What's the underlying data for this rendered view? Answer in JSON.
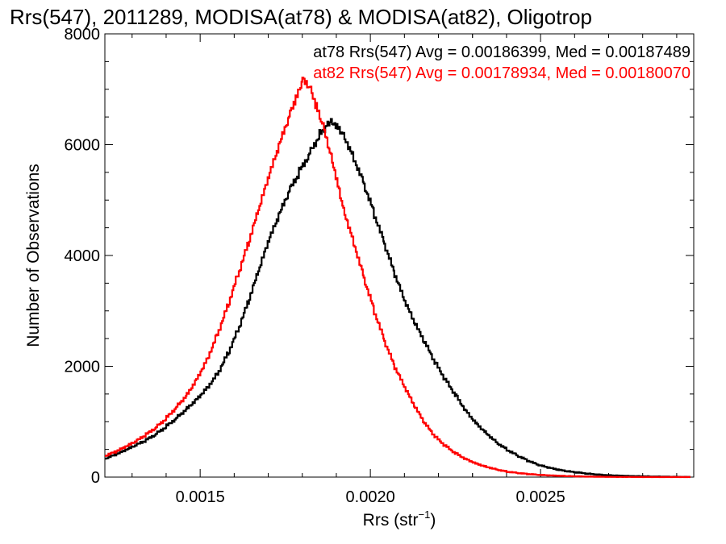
{
  "chart_data": {
    "type": "histogram-step",
    "title": "Rrs(547), 2011289, MODISA(at78) & MODISA(at82), Oligotrop",
    "xlabel": "Rrs (str",
    "xlabel_sup": "−1",
    "xlabel_close": ")",
    "ylabel": "Number of Observations",
    "xlim": [
      0.00122,
      0.00295
    ],
    "ylim": [
      0,
      8000
    ],
    "x_ticks": [
      0.0015,
      0.002,
      0.0025
    ],
    "x_tick_labels": [
      "0.0015",
      "0.0020",
      "0.0025"
    ],
    "y_ticks": [
      0,
      2000,
      4000,
      6000,
      8000
    ],
    "y_tick_labels": [
      "0",
      "2000",
      "4000",
      "6000",
      "8000"
    ],
    "grid": false,
    "legend_position": "top-right",
    "series": [
      {
        "name": "at78",
        "legend_text": "at78 Rrs(547) Avg = 0.00186399, Med = 0.00187489",
        "color": "#000000",
        "points": [
          [
            0.00122,
            330
          ],
          [
            0.00125,
            400
          ],
          [
            0.00128,
            480
          ],
          [
            0.00131,
            570
          ],
          [
            0.00134,
            660
          ],
          [
            0.00137,
            780
          ],
          [
            0.0014,
            920
          ],
          [
            0.00143,
            1080
          ],
          [
            0.00146,
            1250
          ],
          [
            0.00149,
            1430
          ],
          [
            0.00152,
            1630
          ],
          [
            0.00155,
            1880
          ],
          [
            0.00158,
            2230
          ],
          [
            0.00161,
            2650
          ],
          [
            0.00164,
            3150
          ],
          [
            0.00167,
            3700
          ],
          [
            0.0017,
            4250
          ],
          [
            0.00173,
            4700
          ],
          [
            0.00176,
            5150
          ],
          [
            0.00179,
            5500
          ],
          [
            0.00182,
            5850
          ],
          [
            0.00185,
            6200
          ],
          [
            0.00187,
            6350
          ],
          [
            0.00188,
            6450
          ],
          [
            0.0019,
            6380
          ],
          [
            0.00192,
            6200
          ],
          [
            0.00195,
            5780
          ],
          [
            0.00198,
            5300
          ],
          [
            0.00201,
            4750
          ],
          [
            0.00204,
            4200
          ],
          [
            0.00207,
            3650
          ],
          [
            0.0021,
            3150
          ],
          [
            0.00213,
            2750
          ],
          [
            0.00216,
            2400
          ],
          [
            0.00219,
            2050
          ],
          [
            0.00222,
            1750
          ],
          [
            0.00225,
            1480
          ],
          [
            0.00228,
            1200
          ],
          [
            0.00231,
            980
          ],
          [
            0.00234,
            800
          ],
          [
            0.00237,
            630
          ],
          [
            0.0024,
            500
          ],
          [
            0.00243,
            390
          ],
          [
            0.00246,
            300
          ],
          [
            0.00249,
            220
          ],
          [
            0.00252,
            170
          ],
          [
            0.00255,
            130
          ],
          [
            0.00258,
            100
          ],
          [
            0.00261,
            80
          ],
          [
            0.00264,
            60
          ],
          [
            0.00267,
            45
          ],
          [
            0.0027,
            35
          ],
          [
            0.00273,
            28
          ],
          [
            0.00276,
            22
          ],
          [
            0.00279,
            17
          ],
          [
            0.00282,
            12
          ],
          [
            0.00285,
            9
          ],
          [
            0.00288,
            6
          ],
          [
            0.00291,
            4
          ],
          [
            0.00294,
            3
          ]
        ]
      },
      {
        "name": "at82",
        "legend_text": "at82 Rrs(547) Avg = 0.00178934, Med = 0.00180070",
        "color": "#ff0000",
        "points": [
          [
            0.00122,
            380
          ],
          [
            0.00125,
            450
          ],
          [
            0.00128,
            540
          ],
          [
            0.00131,
            640
          ],
          [
            0.00134,
            760
          ],
          [
            0.00137,
            900
          ],
          [
            0.0014,
            1070
          ],
          [
            0.00143,
            1280
          ],
          [
            0.00146,
            1500
          ],
          [
            0.00149,
            1800
          ],
          [
            0.00152,
            2150
          ],
          [
            0.00155,
            2600
          ],
          [
            0.00158,
            3100
          ],
          [
            0.00161,
            3650
          ],
          [
            0.00164,
            4200
          ],
          [
            0.00167,
            4800
          ],
          [
            0.0017,
            5400
          ],
          [
            0.00173,
            5950
          ],
          [
            0.00176,
            6500
          ],
          [
            0.00178,
            6800
          ],
          [
            0.0018,
            7150
          ],
          [
            0.00182,
            7050
          ],
          [
            0.00184,
            6700
          ],
          [
            0.00186,
            6350
          ],
          [
            0.00188,
            5900
          ],
          [
            0.0019,
            5400
          ],
          [
            0.00192,
            4850
          ],
          [
            0.00195,
            4250
          ],
          [
            0.00198,
            3600
          ],
          [
            0.00201,
            3000
          ],
          [
            0.00204,
            2450
          ],
          [
            0.00207,
            1980
          ],
          [
            0.0021,
            1600
          ],
          [
            0.00213,
            1250
          ],
          [
            0.00216,
            950
          ],
          [
            0.00219,
            720
          ],
          [
            0.00222,
            560
          ],
          [
            0.00225,
            430
          ],
          [
            0.00228,
            330
          ],
          [
            0.00231,
            250
          ],
          [
            0.00234,
            190
          ],
          [
            0.00237,
            140
          ],
          [
            0.0024,
            100
          ],
          [
            0.00243,
            75
          ],
          [
            0.00246,
            55
          ],
          [
            0.00249,
            40
          ],
          [
            0.00252,
            30
          ],
          [
            0.00255,
            22
          ],
          [
            0.00258,
            16
          ],
          [
            0.00261,
            12
          ],
          [
            0.00264,
            9
          ],
          [
            0.00267,
            7
          ],
          [
            0.0027,
            5
          ],
          [
            0.00273,
            4
          ],
          [
            0.00276,
            3
          ],
          [
            0.00279,
            2
          ],
          [
            0.00282,
            2
          ],
          [
            0.00285,
            1
          ],
          [
            0.00288,
            1
          ],
          [
            0.00291,
            1
          ],
          [
            0.00294,
            0
          ]
        ]
      }
    ]
  }
}
